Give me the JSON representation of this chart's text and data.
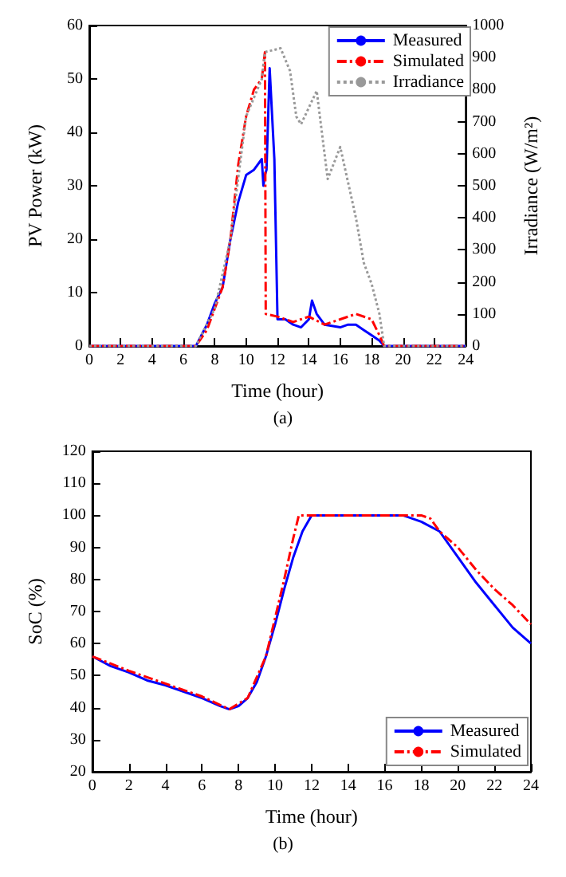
{
  "chart_data": [
    {
      "type": "line",
      "xlabel": "Time (hour)",
      "ylabel": "PV Power (kW)",
      "y2label": "Irradiance (W/m²)",
      "xlim": [
        0,
        24
      ],
      "xticks": [
        0,
        2,
        4,
        6,
        8,
        10,
        12,
        14,
        16,
        18,
        20,
        22,
        24
      ],
      "ylim": [
        0,
        60
      ],
      "yticks": [
        0,
        10,
        20,
        30,
        40,
        50,
        60
      ],
      "y2lim": [
        0,
        1000
      ],
      "y2ticks": [
        0,
        100,
        200,
        300,
        400,
        500,
        600,
        700,
        800,
        900,
        1000
      ],
      "grid": false,
      "legend": "top right",
      "marker": "none",
      "annotations": [
        "(a)"
      ],
      "series": [
        {
          "name": "Measured",
          "color": "#0000ff",
          "line_style": "solid",
          "x": [
            0,
            6.8,
            7.5,
            8,
            8.5,
            9,
            9.5,
            10,
            10.5,
            11,
            11.1,
            11.2,
            11.3,
            11.5,
            11.8,
            12,
            12.5,
            13,
            13.5,
            14,
            14.2,
            14.5,
            15,
            16,
            16.5,
            17,
            17.5,
            18,
            18.5,
            18.8,
            24
          ],
          "values": [
            0,
            0,
            4,
            8,
            11,
            20,
            27,
            32,
            33,
            35,
            30,
            32,
            33,
            52,
            35,
            5,
            5,
            4,
            3.5,
            5,
            8.5,
            6,
            4,
            3.5,
            4,
            4,
            3,
            2,
            1,
            0,
            0
          ]
        },
        {
          "name": "Simulated",
          "color": "#ff0000",
          "line_style": "dashed",
          "x": [
            0,
            6.8,
            7.5,
            8,
            8.5,
            9,
            9.5,
            10,
            10.5,
            11,
            11.2,
            11.25,
            12,
            13,
            14,
            15,
            16,
            17,
            18,
            18.5,
            18.8,
            24
          ],
          "values": [
            0,
            0,
            3,
            7,
            11,
            20,
            34,
            43,
            48,
            50,
            55,
            6,
            5.5,
            4.5,
            5.5,
            4,
            5,
            6,
            5,
            2,
            0,
            0
          ]
        },
        {
          "name": "Irradiance",
          "color": "#999999",
          "line_style": "dotted",
          "axis": "y2",
          "x": [
            0,
            6.8,
            8,
            9,
            10,
            11,
            11.2,
            12.2,
            12.8,
            13.2,
            13.5,
            14.5,
            15.2,
            16,
            17,
            17.5,
            18,
            18.5,
            18.8,
            24
          ],
          "values": [
            0,
            0,
            117,
            333,
            717,
            833,
            917,
            929,
            858,
            716,
            692,
            796,
            521,
            621,
            400,
            260,
            194,
            100,
            0,
            0
          ]
        }
      ]
    },
    {
      "type": "line",
      "xlabel": "Time (hour)",
      "ylabel": "SoC (%)",
      "xlim": [
        0,
        24
      ],
      "xticks": [
        0,
        2,
        4,
        6,
        8,
        10,
        12,
        14,
        16,
        18,
        20,
        22,
        24
      ],
      "ylim": [
        20,
        120
      ],
      "yticks": [
        20,
        30,
        40,
        50,
        60,
        70,
        80,
        90,
        100,
        110,
        120
      ],
      "grid": false,
      "legend": "bottom right",
      "marker": "none",
      "annotations": [
        "(b)"
      ],
      "series": [
        {
          "name": "Measured",
          "color": "#0000ff",
          "line_style": "solid",
          "x": [
            0,
            1,
            2,
            3,
            4,
            5,
            6,
            7,
            7.5,
            8,
            8.5,
            9,
            9.5,
            10,
            10.5,
            11,
            11.5,
            12,
            17,
            18,
            19,
            20,
            21,
            22,
            23,
            24
          ],
          "values": [
            56,
            53,
            51,
            48.5,
            47,
            45,
            43,
            40.5,
            39.5,
            40.5,
            43,
            48,
            56,
            66,
            77,
            87,
            95,
            100,
            100,
            98,
            95,
            87,
            79,
            72,
            65,
            60
          ]
        },
        {
          "name": "Simulated",
          "color": "#ff0000",
          "line_style": "dashed",
          "x": [
            0,
            2,
            4,
            6,
            7.5,
            8.5,
            9.5,
            10,
            10.5,
            11,
            11.3,
            18,
            18.5,
            19,
            20,
            21,
            22,
            23,
            24
          ],
          "values": [
            56,
            51.5,
            47.5,
            43.5,
            39.5,
            43,
            56,
            68,
            80,
            93,
            100,
            100,
            99,
            95,
            90,
            83,
            77,
            72,
            66
          ]
        }
      ]
    }
  ]
}
